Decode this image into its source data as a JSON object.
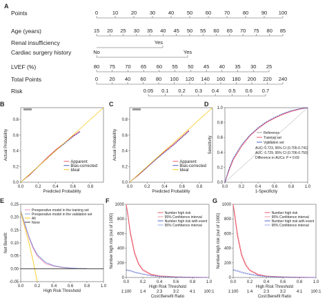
{
  "chart_data": [
    {
      "type": "table",
      "panel": "A",
      "kind": "nomogram",
      "rows": [
        {
          "label": "Points",
          "ticks": [
            "0",
            "10",
            "20",
            "30",
            "40",
            "50",
            "60",
            "70",
            "80",
            "90",
            "100"
          ]
        },
        {
          "label": "Age (years)",
          "ticks": [
            "15",
            "20",
            "25",
            "30",
            "35",
            "40",
            "45",
            "50",
            "55",
            "60",
            "65",
            "70",
            "75",
            "80",
            "85"
          ]
        },
        {
          "label": "Renal insufficiency",
          "ticks": [
            "Yes"
          ]
        },
        {
          "label": "Cardiac surgery history",
          "ticks": [
            "No",
            "Yes"
          ]
        },
        {
          "label": "LVEF (%)",
          "ticks": [
            "80",
            "75",
            "70",
            "65",
            "60",
            "55",
            "50",
            "45",
            "40",
            "35",
            "30",
            "25"
          ],
          "lower_ticks": [
            "No"
          ]
        },
        {
          "label": "Total Points",
          "ticks": [
            "0",
            "20",
            "40",
            "60",
            "80",
            "100",
            "120",
            "140",
            "160",
            "180",
            "200",
            "220",
            "240"
          ]
        },
        {
          "label": "Risk",
          "ticks": [
            "0.05",
            "0.1",
            "0.2",
            "0.3",
            "0.4",
            "0.5",
            "0.6",
            "0.7"
          ]
        }
      ]
    },
    {
      "type": "line",
      "panel": "B",
      "xlabel": "Predicted Probability",
      "ylabel": "Actual Probability",
      "xticks": [
        "0.0",
        "0.2",
        "0.4",
        "0.6",
        "0.8"
      ],
      "yticks": [
        "0.0",
        "0.2",
        "0.4",
        "0.6",
        "0.8"
      ],
      "xlim": [
        0,
        0.95
      ],
      "ylim": [
        0,
        0.95
      ],
      "legend": [
        "Apparent",
        "Bias-corrected",
        "Ideal"
      ],
      "series": [
        {
          "name": "Apparent",
          "x": [
            0.02,
            0.1,
            0.2,
            0.3,
            0.4,
            0.5,
            0.6,
            0.68
          ],
          "y": [
            0.02,
            0.09,
            0.2,
            0.31,
            0.41,
            0.5,
            0.59,
            0.65
          ]
        },
        {
          "name": "Bias-corrected",
          "x": [
            0.02,
            0.1,
            0.2,
            0.3,
            0.4,
            0.5,
            0.6,
            0.68
          ],
          "y": [
            0.02,
            0.095,
            0.2,
            0.3,
            0.4,
            0.49,
            0.58,
            0.64
          ]
        },
        {
          "name": "Ideal",
          "x": [
            0,
            0.95
          ],
          "y": [
            0,
            0.95
          ]
        }
      ]
    },
    {
      "type": "line",
      "panel": "C",
      "xlabel": "Predicted Probability",
      "ylabel": "Actual Probability",
      "xticks": [
        "0.0",
        "0.2",
        "0.4",
        "0.6",
        "0.8"
      ],
      "yticks": [
        "0.0",
        "0.2",
        "0.4",
        "0.6",
        "0.8"
      ],
      "xlim": [
        0,
        0.95
      ],
      "ylim": [
        0,
        0.95
      ],
      "legend": [
        "Apparent",
        "Bias-corrected",
        "Ideal"
      ],
      "series": [
        {
          "name": "Apparent",
          "x": [
            0.02,
            0.1,
            0.2,
            0.3,
            0.4,
            0.5,
            0.6,
            0.68
          ],
          "y": [
            0.02,
            0.09,
            0.19,
            0.29,
            0.39,
            0.48,
            0.58,
            0.66
          ]
        },
        {
          "name": "Bias-corrected",
          "x": [
            0.02,
            0.1,
            0.2,
            0.3,
            0.4,
            0.5,
            0.6,
            0.68
          ],
          "y": [
            0.02,
            0.095,
            0.19,
            0.29,
            0.38,
            0.47,
            0.57,
            0.65
          ]
        },
        {
          "name": "Ideal",
          "x": [
            0,
            0.95
          ],
          "y": [
            0,
            0.95
          ]
        }
      ]
    },
    {
      "type": "line",
      "panel": "D",
      "xlabel": "1-Specificity",
      "ylabel": "Sensitivity",
      "xticks": [
        "0.0",
        "0.2",
        "0.4",
        "0.6",
        "0.8",
        "1.0"
      ],
      "yticks": [
        "0.0",
        "0.2",
        "0.4",
        "0.6",
        "0.8",
        "1.0"
      ],
      "xlim": [
        0,
        1
      ],
      "ylim": [
        0,
        1
      ],
      "legend": [
        "Reference",
        "Training set",
        "Validation set"
      ],
      "annotations": [
        "AUC: 0.723, 95% CI (0.705-0.741)",
        "AUC: 0.729, 95% CI (0.706-0.750)",
        "Difference in AUCs: P = 0.69"
      ],
      "series": [
        {
          "name": "Reference",
          "x": [
            0,
            1
          ],
          "y": [
            0,
            1
          ]
        },
        {
          "name": "Training set",
          "x": [
            0,
            0.05,
            0.1,
            0.2,
            0.3,
            0.4,
            0.5,
            0.6,
            0.7,
            0.8,
            0.9,
            1
          ],
          "y": [
            0,
            0.16,
            0.3,
            0.48,
            0.62,
            0.72,
            0.8,
            0.86,
            0.91,
            0.95,
            0.98,
            1
          ]
        },
        {
          "name": "Validation set",
          "x": [
            0,
            0.05,
            0.1,
            0.2,
            0.3,
            0.4,
            0.5,
            0.6,
            0.7,
            0.8,
            0.9,
            1
          ],
          "y": [
            0,
            0.18,
            0.32,
            0.5,
            0.63,
            0.73,
            0.81,
            0.87,
            0.92,
            0.96,
            0.985,
            1
          ]
        }
      ]
    },
    {
      "type": "line",
      "panel": "E",
      "xlabel": "High Risk Threshold",
      "ylabel": "Net Benefit",
      "xticks": [
        "0.0",
        "0.2",
        "0.4",
        "0.6",
        "0.8",
        "1.0"
      ],
      "yticks": [
        "-0.05",
        "0.00",
        "0.05",
        "0.10",
        "0.15",
        "0.20",
        "0.25"
      ],
      "xlim": [
        0,
        1
      ],
      "ylim": [
        -0.05,
        0.25
      ],
      "legend": [
        "Preoperative model in the training set",
        "Preoperative model in the validation set",
        "All",
        "None"
      ],
      "series": [
        {
          "name": "Preoperative model in the training set",
          "x": [
            0,
            0.05,
            0.1,
            0.15,
            0.2,
            0.3,
            0.4,
            0.5,
            0.6,
            0.7,
            0.8
          ],
          "y": [
            0.22,
            0.17,
            0.12,
            0.08,
            0.05,
            0.02,
            0.01,
            0.005,
            0.002,
            0.001,
            0
          ]
        },
        {
          "name": "Preoperative model in the validation set",
          "x": [
            0,
            0.05,
            0.1,
            0.15,
            0.2,
            0.3,
            0.4,
            0.5,
            0.6,
            0.7,
            0.8
          ],
          "y": [
            0.225,
            0.175,
            0.125,
            0.085,
            0.055,
            0.025,
            0.012,
            0.006,
            0.003,
            0.001,
            0
          ]
        },
        {
          "name": "All",
          "x": [
            0,
            0.05,
            0.1,
            0.15,
            0.2
          ],
          "y": [
            0.22,
            0.16,
            0.1,
            0.03,
            -0.05
          ]
        },
        {
          "name": "None",
          "x": [
            0,
            1
          ],
          "y": [
            0,
            0
          ]
        }
      ]
    },
    {
      "type": "line",
      "panel": "F",
      "xlabel": "High Risk Threshold",
      "x2label": "Cost:Benefit Ratio",
      "ylabel": "Number high risk (out of 1000)",
      "xticks": [
        "0.0",
        "0.2",
        "0.4",
        "0.6",
        "0.8",
        "1.0"
      ],
      "x2ticks": [
        "1:100",
        "1:4",
        "2:3",
        "3:2",
        "4:1",
        "100:1"
      ],
      "yticks": [
        "0",
        "200",
        "400",
        "600",
        "800",
        "1000"
      ],
      "xlim": [
        0,
        1
      ],
      "ylim": [
        0,
        1000
      ],
      "legend": [
        "Number high risk",
        "95% Confidence interval",
        "Number high risk with event",
        "95% Confidence interval"
      ],
      "series": [
        {
          "name": "Number high risk",
          "x": [
            0,
            0.02,
            0.05,
            0.1,
            0.15,
            0.2,
            0.3,
            0.4,
            0.6,
            0.8,
            1
          ],
          "y": [
            1000,
            850,
            600,
            330,
            180,
            100,
            40,
            20,
            8,
            3,
            0
          ]
        },
        {
          "name": "95% Confidence interval",
          "x": [
            0,
            0.02,
            0.05,
            0.1,
            0.15,
            0.2,
            0.3,
            0.4,
            0.6,
            0.8,
            1
          ],
          "y": [
            1000,
            880,
            640,
            360,
            200,
            115,
            48,
            24,
            10,
            4,
            0
          ]
        },
        {
          "name": "Number high risk with event",
          "x": [
            0,
            0.05,
            0.1,
            0.2,
            0.3,
            0.4,
            0.6,
            0.8,
            1
          ],
          "y": [
            100,
            90,
            70,
            45,
            25,
            12,
            5,
            2,
            0
          ]
        },
        {
          "name": "95% Confidence interval",
          "x": [
            0,
            0.05,
            0.1,
            0.2,
            0.3,
            0.4,
            0.6,
            0.8,
            1
          ],
          "y": [
            110,
            98,
            78,
            50,
            30,
            15,
            6,
            2,
            0
          ]
        }
      ]
    },
    {
      "type": "line",
      "panel": "G",
      "xlabel": "High Risk Threshold",
      "x2label": "Cost:Benefit Ratio",
      "ylabel": "Number high risk (out of 1000)",
      "xticks": [
        "0.0",
        "0.2",
        "0.4",
        "0.6",
        "0.8",
        "1.0"
      ],
      "x2ticks": [
        "1:100",
        "1:4",
        "2:3",
        "3:2",
        "4:1",
        "100:1"
      ],
      "yticks": [
        "0",
        "200",
        "400",
        "600",
        "800",
        "1000"
      ],
      "xlim": [
        0,
        1
      ],
      "ylim": [
        0,
        1000
      ],
      "legend": [
        "Number high risk",
        "95% Confidence interval",
        "Number high risk with event",
        "95% Confidence interval"
      ],
      "series": [
        {
          "name": "Number high risk",
          "x": [
            0,
            0.02,
            0.05,
            0.1,
            0.15,
            0.2,
            0.3,
            0.4,
            0.6,
            0.8,
            1
          ],
          "y": [
            1000,
            840,
            580,
            310,
            170,
            95,
            38,
            18,
            7,
            3,
            0
          ]
        },
        {
          "name": "95% Confidence interval",
          "x": [
            0,
            0.02,
            0.05,
            0.1,
            0.15,
            0.2,
            0.3,
            0.4,
            0.6,
            0.8,
            1
          ],
          "y": [
            1000,
            880,
            630,
            350,
            195,
            110,
            46,
            22,
            9,
            4,
            0
          ]
        },
        {
          "name": "Number high risk with event",
          "x": [
            0,
            0.05,
            0.1,
            0.2,
            0.3,
            0.4,
            0.6,
            0.8,
            1
          ],
          "y": [
            100,
            88,
            68,
            42,
            24,
            12,
            5,
            2,
            0
          ]
        },
        {
          "name": "95% Confidence interval",
          "x": [
            0,
            0.05,
            0.1,
            0.2,
            0.3,
            0.4,
            0.6,
            0.8,
            1
          ],
          "y": [
            112,
            100,
            80,
            52,
            30,
            15,
            6,
            2,
            0
          ]
        }
      ]
    }
  ]
}
